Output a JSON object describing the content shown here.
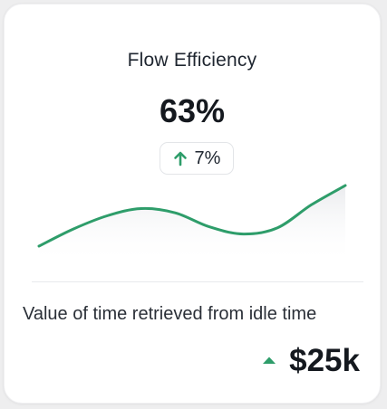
{
  "card": {
    "title": "Flow Efficiency",
    "value": "63%",
    "change": {
      "direction": "up",
      "text": "7%",
      "icon": "arrow-up-icon",
      "color": "#2e9d6a"
    },
    "sparkline": {
      "line_color": "#2e9d6a",
      "trend": "rising",
      "values": [
        0,
        0.28,
        0.5,
        0.62,
        0.55,
        0.32,
        0.2,
        0.3,
        0.68,
        1
      ]
    },
    "caption": "Value of time retrieved from idle time",
    "amount": "$25k",
    "amount_icon": "triangle-up-icon"
  }
}
